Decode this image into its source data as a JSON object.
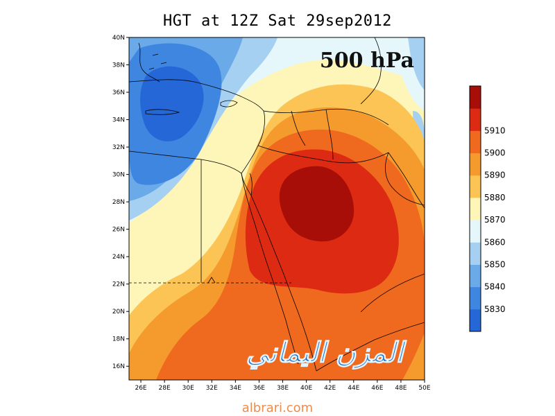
{
  "title": "HGT at 12Z Sat 29sep2012",
  "level_label": "500 hPa",
  "signature": "المزن اليماني",
  "watermark": "albrari.com",
  "map": {
    "lon_range": [
      25,
      50
    ],
    "lat_range": [
      15,
      40
    ],
    "lon_ticks": [
      "26E",
      "28E",
      "30E",
      "32E",
      "34E",
      "36E",
      "38E",
      "40E",
      "42E",
      "44E",
      "46E",
      "48E",
      "50E"
    ],
    "lat_ticks": [
      "16N",
      "18N",
      "20N",
      "22N",
      "24N",
      "26N",
      "28N",
      "30N",
      "32N",
      "34N",
      "36N",
      "38N",
      "40N"
    ],
    "low_center": {
      "lon": 29,
      "lat": 35.5
    },
    "high_center": {
      "lon": 40.5,
      "lat": 27.5
    }
  },
  "colorbar": {
    "levels": [
      "5830",
      "5840",
      "5850",
      "5860",
      "5870",
      "5880",
      "5890",
      "5900",
      "5910"
    ],
    "colors": [
      "#2567d6",
      "#3f86e0",
      "#6aaae8",
      "#a6d0f2",
      "#e6f7fb",
      "#fdf6b8",
      "#fbc455",
      "#f59a2c",
      "#ef6a1e",
      "#dd2a12",
      "#a80e08"
    ]
  },
  "colors": {
    "fill_5830": "#2567d6",
    "fill_5840": "#3f86e0",
    "fill_5850": "#6aaae8",
    "fill_5860": "#a6d0f2",
    "fill_5870": "#e6f7fb",
    "fill_5880": "#fdf6b8",
    "fill_5890": "#fbc455",
    "fill_5900": "#f59a2c",
    "fill_5910": "#ef6a1e",
    "fill_5920": "#dd2a12",
    "fill_max": "#a80e08"
  }
}
